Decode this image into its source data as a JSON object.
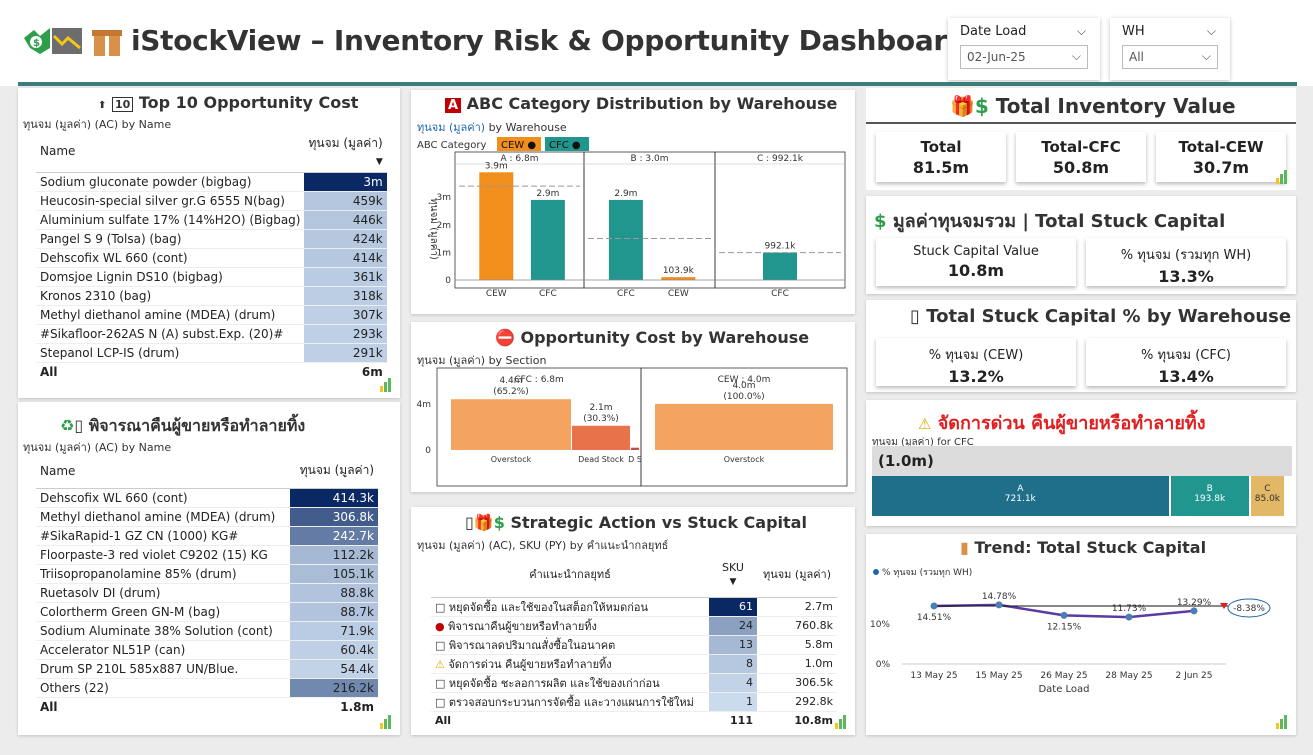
{
  "header": {
    "title": "iStockView – Inventory Risk & Opportunity Dashboard",
    "date_slicer": {
      "label": "Date Load",
      "value": "02-Jun-25"
    },
    "wh_slicer": {
      "label": "WH",
      "value": "All"
    }
  },
  "top10": {
    "title": "Top 10 Opportunity Cost",
    "subtitle": "ทุนจม (มูลค่า) (AC) by Name",
    "col_name": "Name",
    "col_value": "ทุนจม (มูลค่า)",
    "rows": [
      {
        "name": "Sodium gluconate powder (bigbag)",
        "value": "3m",
        "shade": 1.0
      },
      {
        "name": "Heucosin-special silver gr.G 6555 N(bag)",
        "value": "459k",
        "shade": 0.15
      },
      {
        "name": "Aluminium sulfate 17% (14%H2O) (Bigbag)",
        "value": "446k",
        "shade": 0.15
      },
      {
        "name": "Pangel S 9 (Tolsa) (bag)",
        "value": "424k",
        "shade": 0.14
      },
      {
        "name": "Dehscofix WL 660 (cont)",
        "value": "414k",
        "shade": 0.14
      },
      {
        "name": "Domsjoe Lignin DS10 (bigbag)",
        "value": "361k",
        "shade": 0.12
      },
      {
        "name": "Kronos 2310 (bag)",
        "value": "318k",
        "shade": 0.11
      },
      {
        "name": "Methyl diethanol amine (MDEA) (drum)",
        "value": "307k",
        "shade": 0.1
      },
      {
        "name": "#Sikafloor-262AS N (A) subst.Exp. (20)#",
        "value": "293k",
        "shade": 0.1
      },
      {
        "name": "Stepanol LCP-IS (drum)",
        "value": "291k",
        "shade": 0.1
      }
    ],
    "total_label": "All",
    "total_value": "6m"
  },
  "consider": {
    "title": "พิจารณาคืนผู้ขายหรือทำลายทิ้ง",
    "subtitle": "ทุนจม (มูลค่า) (AC) by Name",
    "col_name": "Name",
    "col_value": "ทุนจม (มูลค่า)",
    "rows": [
      {
        "name": "Dehscofix WL 660 (cont)",
        "value": "414.3k",
        "shade": 1.0
      },
      {
        "name": "Methyl diethanol amine (MDEA) (drum)",
        "value": "306.8k",
        "shade": 0.72
      },
      {
        "name": "#SikaRapid-1 GZ CN (1000) KG#",
        "value": "242.7k",
        "shade": 0.55
      },
      {
        "name": "Floorpaste-3 red violet C9202 (15) KG",
        "value": "112.2k",
        "shade": 0.22
      },
      {
        "name": "Triisopropanolamine 85% (drum)",
        "value": "105.1k",
        "shade": 0.2
      },
      {
        "name": "Ruetasolv DI (drum)",
        "value": "88.8k",
        "shade": 0.16
      },
      {
        "name": "Colortherm Green GN-M (bag)",
        "value": "88.7k",
        "shade": 0.16
      },
      {
        "name": "Sodium Aluminate 38% Solution (cont)",
        "value": "71.9k",
        "shade": 0.12
      },
      {
        "name": "Accelerator NL51P (can)",
        "value": "60.4k",
        "shade": 0.1
      },
      {
        "name": "Drum SP 210L 585x887 UN/Blue.",
        "value": "54.4k",
        "shade": 0.08
      },
      {
        "name": "Others (22)",
        "value": "216.2k",
        "shade": 0.48
      }
    ],
    "total_label": "All",
    "total_value": "1.8m"
  },
  "abc": {
    "title": "ABC Category Distribution by Warehouse",
    "subtitle_a": "ทุนจม (มูลค่า)",
    "subtitle_b": "by Warehouse",
    "legend_label": "ABC Category",
    "legend": [
      {
        "name": "CEW",
        "color": "#f28e1c"
      },
      {
        "name": "CFC",
        "color": "#21968e"
      }
    ],
    "ylabel": "ทุนจม (มูลค่า)",
    "yticks": [
      "3m",
      "2m",
      "1m",
      "0"
    ],
    "ymax": 4.2,
    "panels": [
      {
        "title": "A : 6.8m",
        "bars": [
          {
            "cat": "CEW",
            "value": 3.9,
            "label": "3.9m",
            "color": "#f28e1c"
          },
          {
            "cat": "CFC",
            "value": 2.9,
            "label": "2.9m",
            "color": "#21968e"
          }
        ]
      },
      {
        "title": "B : 3.0m",
        "bars": [
          {
            "cat": "CFC",
            "value": 2.9,
            "label": "2.9m",
            "color": "#21968e"
          },
          {
            "cat": "CEW",
            "value": 0.1039,
            "label": "103.9k",
            "color": "#f28e1c"
          }
        ]
      },
      {
        "title": "C : 992.1k",
        "bars": [
          {
            "cat": "CFC",
            "value": 0.9921,
            "label": "992.1k",
            "color": "#21968e"
          }
        ]
      }
    ]
  },
  "oppcost": {
    "title": "Opportunity Cost by Warehouse",
    "subtitle": "ทุนจม (มูลค่า) by Section",
    "ytick_top": "4m",
    "ytick_zero": "0",
    "panels": [
      {
        "title": "CFC : 6.8m",
        "bars": [
          {
            "cat": "Overstock",
            "value": 4.4,
            "label": "4.4m",
            "pct": "(65.2%)",
            "color": "#f4a460"
          },
          {
            "cat": "Dead Stock",
            "value": 2.1,
            "label": "2.1m",
            "pct": "(30.3%)",
            "color": "#e8734a"
          },
          {
            "cat": "D S",
            "value": 0.2,
            "label": "",
            "pct": "",
            "color": "#c0504d"
          }
        ]
      },
      {
        "title": "CEW : 4.0m",
        "bars": [
          {
            "cat": "Overstock",
            "value": 4.0,
            "label": "4.0m",
            "pct": "(100.0%)",
            "color": "#f4a460"
          }
        ]
      }
    ]
  },
  "strategic": {
    "title": "Strategic Action vs Stuck Capital",
    "subtitle": "ทุนจม (มูลค่า) (AC), SKU (PY) by คำแนะนำกลยุทธ์",
    "col_action": "คำแนะนำกลยุทธ์",
    "col_sku": "SKU",
    "col_value": "ทุนจม (มูลค่า)",
    "rows": [
      {
        "icon": "□",
        "icon_color": "#333",
        "action": "หยุดจัดซื้อ และใช้ของในสต็อกให้หมดก่อน",
        "sku": "61",
        "value": "2.7m",
        "shade": 1.0
      },
      {
        "icon": "●",
        "icon_color": "#c00000",
        "action": "พิจารณาคืนผู้ขายหรือทำลายทิ้ง",
        "sku": "24",
        "value": "760.8k",
        "shade": 0.35
      },
      {
        "icon": "□",
        "icon_color": "#333",
        "action": "พิจารณาลดปริมาณสั่งซื้อในอนาคต",
        "sku": "13",
        "value": "5.8m",
        "shade": 0.22
      },
      {
        "icon": "⚠",
        "icon_color": "#e0a800",
        "action": "จัดการด่วน คืนผู้ขายหรือทำลายทิ้ง",
        "sku": "8",
        "value": "1.0m",
        "shade": 0.14
      },
      {
        "icon": "□",
        "icon_color": "#333",
        "action": "หยุดจัดซื้อ ชะลอการผลิต และใช้ของเก่าก่อน",
        "sku": "4",
        "value": "306.5k",
        "shade": 0.08
      },
      {
        "icon": "□",
        "icon_color": "#333",
        "action": "ตรวจสอบกระบวนการจัดซื้อ และวางแผนการใช้ใหม่",
        "sku": "1",
        "value": "292.8k",
        "shade": 0.04
      }
    ],
    "total_label": "All",
    "total_sku": "111",
    "total_value": "10.8m"
  },
  "inventory": {
    "title": "Total Inventory Value",
    "cards": [
      {
        "label": "Total",
        "value": "81.5m"
      },
      {
        "label": "Total-CFC",
        "value": "50.8m"
      },
      {
        "label": "Total-CEW",
        "value": "30.7m"
      }
    ]
  },
  "stuck": {
    "title": "มูลค่าทุนจมรวม | Total Stuck Capital",
    "cards": [
      {
        "label": "Stuck Capital Value",
        "value": "10.8m"
      },
      {
        "label": "% ทุนจม (รวมทุก WH)",
        "value": "13.3%"
      }
    ]
  },
  "stuck_pct": {
    "title": "Total Stuck Capital % by Warehouse",
    "cards": [
      {
        "label": "% ทุนจม (CEW)",
        "value": "13.2%"
      },
      {
        "label": "% ทุนจม (CFC)",
        "value": "13.4%"
      }
    ]
  },
  "urgent": {
    "title": "จัดการด่วน คืนผู้ขายหรือทำลายทิ้ง",
    "subtitle": "ทุนจม (มูลค่า) for CFC",
    "total": "(1.0m)",
    "segments": [
      {
        "name": "A",
        "value": "721.1k",
        "amount": 721.1,
        "color": "#1f6f8b"
      },
      {
        "name": "B",
        "value": "193.8k",
        "amount": 193.8,
        "color": "#21968e"
      },
      {
        "name": "C",
        "value": "85.0k",
        "amount": 85.0,
        "color": "#e2b866"
      }
    ]
  },
  "trend": {
    "title": "Trend: Total Stuck Capital",
    "legend": "% ทุนจม (รวมทุก WH)",
    "xlabel": "Date Load",
    "yticks": [
      "10%",
      "0%"
    ],
    "points": [
      {
        "x": "13 May 25",
        "y": 14.51,
        "label": "14.51%"
      },
      {
        "x": "15 May 25",
        "y": 14.78,
        "label": "14.78%"
      },
      {
        "x": "26 May 25",
        "y": 12.15,
        "label": "12.15%"
      },
      {
        "x": "28 May 25",
        "y": 11.73,
        "label": "11.73%"
      },
      {
        "x": "2 Jun 25",
        "y": 13.29,
        "label": "13.29%"
      }
    ],
    "change_label": "-8.38%"
  }
}
